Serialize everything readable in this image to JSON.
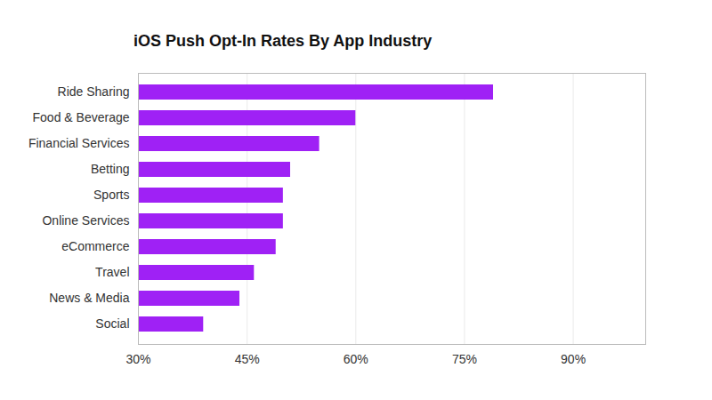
{
  "chart_data": {
    "type": "bar",
    "title": "iOS Push Opt-In Rates By App Industry",
    "orientation": "horizontal",
    "categories": [
      "Ride Sharing",
      "Food & Beverage",
      "Financial Services",
      "Betting",
      "Sports",
      "Online Services",
      "eCommerce",
      "Travel",
      "News & Media",
      "Social"
    ],
    "values": [
      79,
      60,
      55,
      51,
      50,
      50,
      49,
      46,
      44,
      39
    ],
    "color": "#9f21f5",
    "xlim": [
      30,
      100
    ],
    "xticks": [
      {
        "value": 30,
        "label": "30%"
      },
      {
        "value": 45,
        "label": "45%"
      },
      {
        "value": 60,
        "label": "60%"
      },
      {
        "value": 75,
        "label": "75%"
      },
      {
        "value": 90,
        "label": "90%"
      }
    ],
    "grid": true
  }
}
